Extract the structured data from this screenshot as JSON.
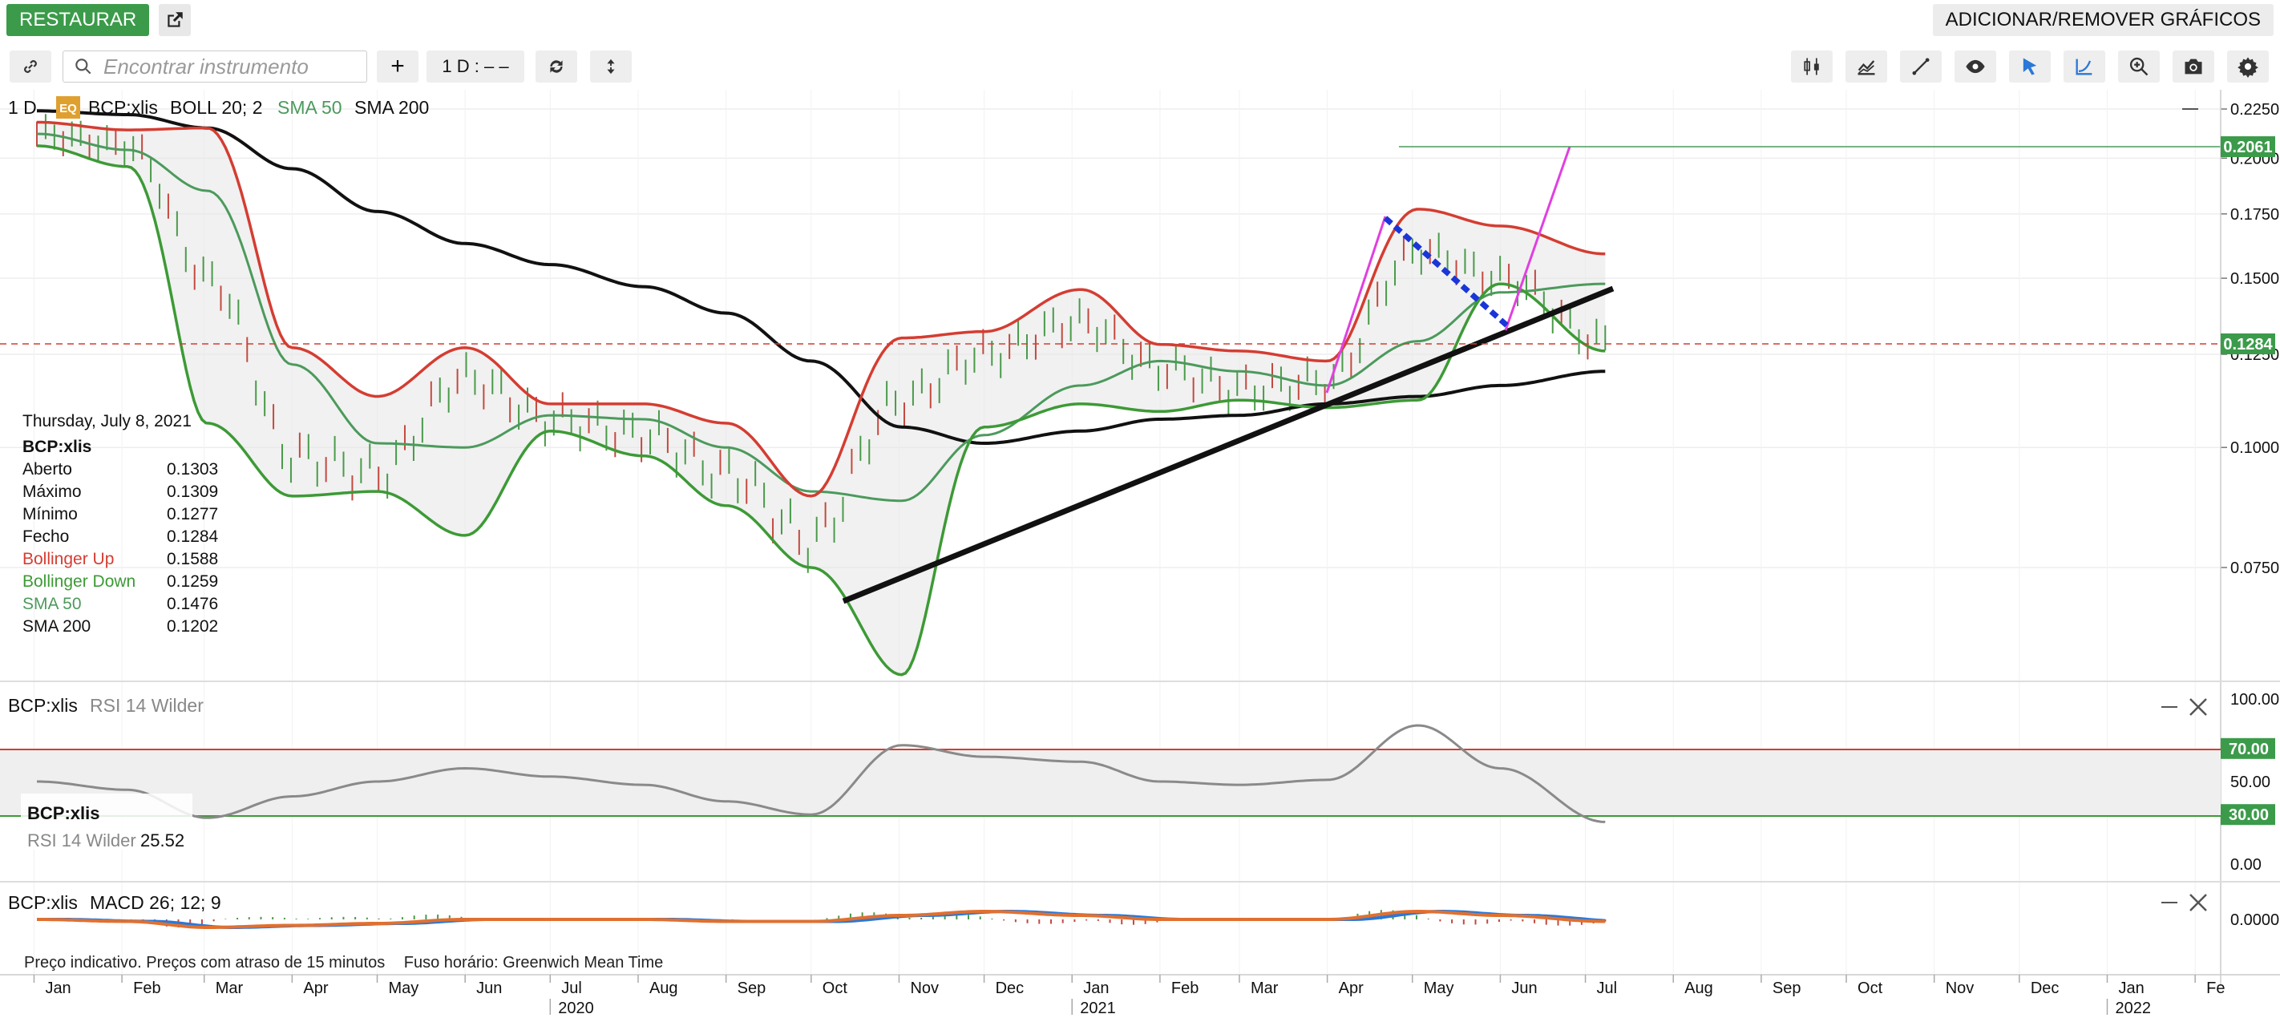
{
  "topbar": {
    "restore_label": "RESTAURAR",
    "add_remove_label": "ADICIONAR/REMOVER GRÁFICOS"
  },
  "toolbar": {
    "search_placeholder": "Encontrar instrumento",
    "interval_label": "1 D : – –",
    "plus_label": "+"
  },
  "main_panel": {
    "interval": "1 D",
    "eq_badge": "EQ",
    "instrument": "BCP:xlis",
    "boll_label": "BOLL 20; 2",
    "sma50_label": "SMA 50",
    "sma200_label": "SMA 200",
    "price_ticks": [
      "0.2250",
      "0.2000",
      "0.1750",
      "0.1500",
      "0.1250",
      "0.1000",
      "0.0750"
    ],
    "last_price_tag": "0.1284",
    "line_tag": "0.2061"
  },
  "info_box": {
    "date": "Thursday, July 8, 2021",
    "instrument": "BCP:xlis",
    "rows": [
      {
        "label": "Aberto",
        "value": "0.1303"
      },
      {
        "label": "Máximo",
        "value": "0.1309"
      },
      {
        "label": "Mínimo",
        "value": "0.1277"
      },
      {
        "label": "Fecho",
        "value": "0.1284"
      },
      {
        "label": "Bollinger Up",
        "value": "0.1588"
      },
      {
        "label": "Bollinger Down",
        "value": "0.1259"
      },
      {
        "label": "SMA 50",
        "value": "0.1476"
      },
      {
        "label": "SMA 200",
        "value": "0.1202"
      }
    ]
  },
  "rsi_panel": {
    "instrument": "BCP:xlis",
    "label": "RSI 14 Wilder",
    "ticks": [
      "100.00",
      "70.00",
      "50.00",
      "30.00",
      "0.00"
    ],
    "legend_instrument": "BCP:xlis",
    "legend_label": "RSI 14 Wilder",
    "legend_value": "25.52"
  },
  "macd_panel": {
    "instrument": "BCP:xlis",
    "label": "MACD 26; 12; 9",
    "tick": "0.0000"
  },
  "footer": {
    "note": "Preço indicativo. Preços com atraso de 15 minutos",
    "timezone": "Fuso horário: Greenwich Mean Time"
  },
  "time_axis": {
    "months": [
      "Jan",
      "Feb",
      "Mar",
      "Apr",
      "May",
      "Jun",
      "Jul",
      "Aug",
      "Sep",
      "Oct",
      "Nov",
      "Dec",
      "Jan",
      "Feb",
      "Mar",
      "Apr",
      "May",
      "Jun",
      "Jul",
      "Aug",
      "Sep",
      "Oct",
      "Nov",
      "Dec",
      "Jan",
      "Fe"
    ],
    "years": [
      "2020",
      "2021",
      "2022"
    ]
  },
  "colors": {
    "bollinger_up": "#d43d32",
    "bollinger_down": "#3d9a36",
    "sma50": "#4c9a5c",
    "sma200": "#111111",
    "trend_magenta": "#e040e0",
    "trend_blue": "#1a36d8",
    "rsi": "#8a8a8a",
    "accent_green": "#3b9b4a"
  },
  "chart_data": {
    "type": "line",
    "x": [
      "2020-01-02",
      "2020-02-03",
      "2020-03-02",
      "2020-04-01",
      "2020-05-01",
      "2020-06-01",
      "2020-07-01",
      "2020-08-03",
      "2020-09-01",
      "2020-10-01",
      "2020-11-02",
      "2020-12-01",
      "2021-01-04",
      "2021-02-01",
      "2021-03-01",
      "2021-04-01",
      "2021-05-03",
      "2021-06-01",
      "2021-07-08"
    ],
    "series": [
      {
        "name": "Bollinger Up",
        "values": [
          0.218,
          0.214,
          0.215,
          0.127,
          0.113,
          0.127,
          0.111,
          0.111,
          0.106,
          0.089,
          0.13,
          0.132,
          0.146,
          0.128,
          0.126,
          0.123,
          0.177,
          0.17,
          0.159
        ]
      },
      {
        "name": "Bollinger Down",
        "values": [
          0.206,
          0.196,
          0.106,
          0.089,
          0.09,
          0.081,
          0.104,
          0.098,
          0.087,
          0.075,
          0.058,
          0.105,
          0.111,
          0.109,
          0.112,
          0.11,
          0.112,
          0.148,
          0.126
        ]
      },
      {
        "name": "SMA 50",
        "values": [
          0.212,
          0.204,
          0.185,
          0.122,
          0.101,
          0.1,
          0.108,
          0.107,
          0.1,
          0.09,
          0.088,
          0.103,
          0.116,
          0.123,
          0.12,
          0.116,
          0.129,
          0.145,
          0.148
        ]
      },
      {
        "name": "SMA 200",
        "values": [
          0.224,
          0.222,
          0.215,
          0.195,
          0.176,
          0.163,
          0.155,
          0.147,
          0.138,
          0.123,
          0.105,
          0.101,
          0.104,
          0.107,
          0.108,
          0.111,
          0.113,
          0.116,
          0.12
        ]
      }
    ],
    "close": [
      0.212,
      0.206,
      0.15,
      0.098,
      0.094,
      0.118,
      0.107,
      0.103,
      0.094,
      0.08,
      0.112,
      0.125,
      0.135,
      0.121,
      0.115,
      0.117,
      0.16,
      0.15,
      0.1284
    ],
    "rsi": [
      50,
      45,
      28,
      41,
      50,
      58,
      53,
      48,
      38,
      30,
      72,
      65,
      62,
      50,
      48,
      51,
      84,
      58,
      25.52
    ],
    "macd": [
      0.0,
      -0.001,
      -0.004,
      -0.003,
      -0.002,
      0.0,
      0.0,
      0.0,
      -0.001,
      -0.001,
      0.002,
      0.004,
      0.002,
      0.0,
      0.0,
      0.0,
      0.004,
      0.002,
      -0.001
    ],
    "ylim": [
      0.055,
      0.23
    ],
    "rsi_levels": [
      70,
      30
    ],
    "legend": "top-left",
    "grid": true
  }
}
